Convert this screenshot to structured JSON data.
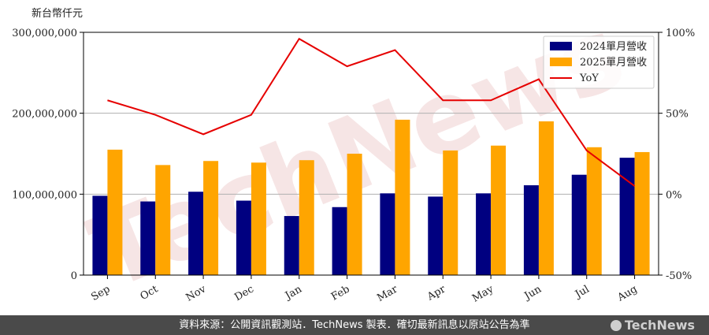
{
  "chart_data": {
    "type": "bar",
    "unit_label": "新台幣仟元",
    "categories": [
      "Sep",
      "Oct",
      "Nov",
      "Dec",
      "Jan",
      "Feb",
      "Mar",
      "Apr",
      "May",
      "Jun",
      "Jul",
      "Aug"
    ],
    "series": [
      {
        "name": "2024單月營收",
        "type": "bar",
        "axis": "left",
        "color": "#000080",
        "values": [
          98000000,
          91000000,
          103000000,
          92000000,
          73000000,
          84000000,
          101000000,
          97000000,
          101000000,
          111000000,
          124000000,
          145000000
        ]
      },
      {
        "name": "2025單月營收",
        "type": "bar",
        "axis": "left",
        "color": "#FFA500",
        "values": [
          155000000,
          136000000,
          141000000,
          139000000,
          142000000,
          150000000,
          192000000,
          154000000,
          160000000,
          190000000,
          158000000,
          152000000
        ]
      },
      {
        "name": "YoY",
        "type": "line",
        "axis": "right",
        "color": "#E60000",
        "values": [
          58,
          49,
          37,
          49,
          96,
          79,
          89,
          58,
          58,
          71,
          27,
          5
        ]
      }
    ],
    "y_left": {
      "min": 0,
      "max": 300000000,
      "ticks": [
        "0",
        "100,000,000",
        "200,000,000",
        "300,000,000"
      ]
    },
    "y_right": {
      "min": -50,
      "max": 100,
      "ticks": [
        "-50%",
        "0%",
        "50%",
        "100%"
      ]
    },
    "grid": "horizontal",
    "legend_position": "top-right"
  },
  "watermark": "TechNews",
  "footer": {
    "source": "資料來源：公開資訊觀測站．TechNews 製表．確切最新訊息以原站公告為準",
    "logo": "TechNews"
  }
}
